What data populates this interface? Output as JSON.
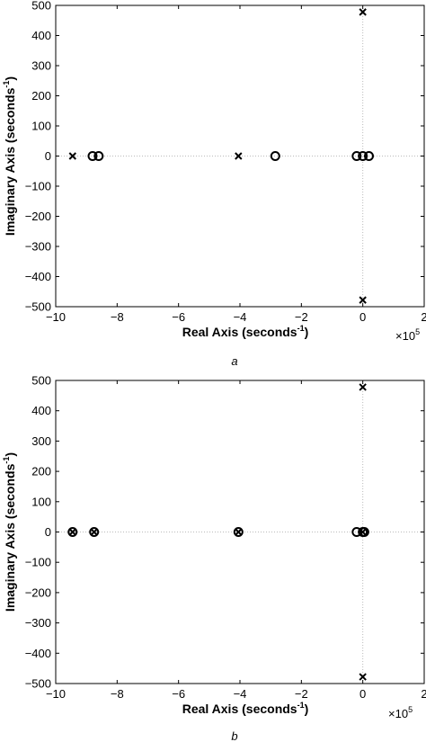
{
  "chart_data": [
    {
      "type": "scatter",
      "panel_label": "a",
      "xlabel": "Real Axis (seconds",
      "xlabel_sup": "-1",
      "xlabel_end": ")",
      "ylabel": "Imaginary Axis (seconds",
      "ylabel_sup": "-1",
      "ylabel_end": ")",
      "x_multiplier_base": "×10",
      "x_multiplier_exp": "5",
      "xlim": [
        -10,
        2
      ],
      "ylim": [
        -500,
        500
      ],
      "xticks": [
        -10,
        -8,
        -6,
        -4,
        -2,
        0,
        2
      ],
      "yticks": [
        -500,
        -400,
        -300,
        -200,
        -100,
        0,
        100,
        200,
        300,
        400,
        500
      ],
      "grid": "dotted lines at x=0 and y=0",
      "poles": [
        {
          "x": -9.45,
          "y": 0
        },
        {
          "x": -4.05,
          "y": 0
        },
        {
          "x": 0,
          "y": 478
        },
        {
          "x": 0,
          "y": -478
        }
      ],
      "zeros": [
        {
          "x": -8.8,
          "y": 0
        },
        {
          "x": -8.6,
          "y": 0
        },
        {
          "x": -2.85,
          "y": 0
        },
        {
          "x": -0.2,
          "y": 0
        },
        {
          "x": 0,
          "y": 0
        },
        {
          "x": 0.2,
          "y": 0
        }
      ]
    },
    {
      "type": "scatter",
      "panel_label": "b",
      "xlabel": "Real Axis (seconds",
      "xlabel_sup": "-1",
      "xlabel_end": ")",
      "ylabel": "Imaginary Axis (seconds",
      "ylabel_sup": "-1",
      "ylabel_end": ")",
      "x_multiplier_base": "×10",
      "x_multiplier_exp": "5",
      "xlim": [
        -10,
        2
      ],
      "ylim": [
        -500,
        500
      ],
      "xticks": [
        -10,
        -8,
        -6,
        -4,
        -2,
        0,
        2
      ],
      "yticks": [
        -500,
        -400,
        -300,
        -200,
        -100,
        0,
        100,
        200,
        300,
        400,
        500
      ],
      "grid": "dotted lines at x=0 and y=0",
      "poles": [
        {
          "x": -9.45,
          "y": 0
        },
        {
          "x": -8.75,
          "y": 0
        },
        {
          "x": -4.05,
          "y": 0
        },
        {
          "x": 0,
          "y": 478
        },
        {
          "x": 0,
          "y": -478
        },
        {
          "x": 0,
          "y": 0
        }
      ],
      "zeros": [
        {
          "x": -9.45,
          "y": 0
        },
        {
          "x": -8.75,
          "y": 0
        },
        {
          "x": -4.05,
          "y": 0
        },
        {
          "x": -0.2,
          "y": 0
        },
        {
          "x": 0,
          "y": 0
        },
        {
          "x": 0.05,
          "y": 0
        }
      ]
    }
  ]
}
